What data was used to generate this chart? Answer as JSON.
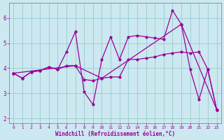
{
  "xlabel": "Windchill (Refroidissement éolien,°C)",
  "bg_color": "#cce8f0",
  "line_color": "#990099",
  "grid_color": "#99cccc",
  "xlim": [
    -0.5,
    23.5
  ],
  "ylim": [
    1.8,
    6.6
  ],
  "xticks": [
    0,
    1,
    2,
    3,
    4,
    5,
    6,
    7,
    8,
    9,
    10,
    11,
    12,
    13,
    14,
    15,
    16,
    17,
    18,
    19,
    20,
    21,
    22,
    23
  ],
  "yticks": [
    2,
    3,
    4,
    5,
    6
  ],
  "line1_x": [
    0,
    1,
    2,
    3,
    4,
    5,
    6,
    7,
    8,
    9,
    10,
    11,
    12,
    13,
    14,
    15,
    16,
    17,
    18,
    19,
    20,
    21,
    22,
    23
  ],
  "line1_y": [
    3.8,
    3.6,
    3.85,
    3.9,
    4.05,
    3.95,
    4.1,
    4.1,
    3.55,
    3.5,
    3.6,
    3.65,
    3.65,
    4.35,
    4.35,
    4.4,
    4.45,
    4.55,
    4.6,
    4.65,
    4.6,
    4.65,
    3.95,
    2.35
  ],
  "line2_x": [
    0,
    1,
    2,
    3,
    4,
    5,
    6,
    7,
    8,
    9,
    10,
    11,
    12,
    13,
    14,
    15,
    16,
    17,
    18,
    19,
    20,
    21,
    22,
    23
  ],
  "line2_y": [
    3.8,
    3.6,
    3.85,
    3.9,
    4.05,
    3.95,
    4.65,
    5.45,
    3.05,
    2.55,
    4.35,
    5.25,
    4.35,
    5.25,
    5.3,
    5.25,
    5.2,
    5.15,
    6.3,
    5.75,
    3.95,
    2.75,
    3.95,
    2.35
  ],
  "line3_x": [
    0,
    7,
    10,
    19,
    23
  ],
  "line3_y": [
    3.8,
    4.1,
    3.6,
    5.75,
    2.35
  ],
  "marker": ".",
  "markersize": 4,
  "linewidth": 0.9
}
